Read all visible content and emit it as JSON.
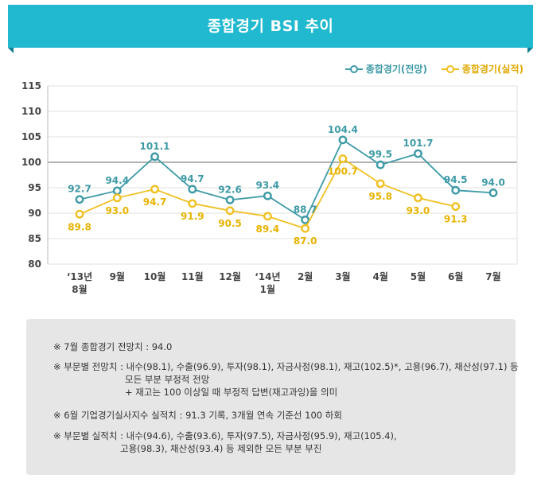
{
  "header": {
    "title": "종합경기 BSI 추이"
  },
  "colors": {
    "banner": "#20b9cf",
    "forecast": "#3d9aa6",
    "actual": "#f0c021"
  },
  "legend": [
    {
      "label": "종합경기(전망)",
      "color": "#3d9aa6"
    },
    {
      "label": "종합경기(실적)",
      "color": "#f0c021"
    }
  ],
  "chart_data": {
    "type": "line",
    "categories": [
      [
        "‘13년",
        "8월"
      ],
      [
        "9월"
      ],
      [
        "10월"
      ],
      [
        "11월"
      ],
      [
        "12월"
      ],
      [
        "‘14년",
        "1월"
      ],
      [
        "2월"
      ],
      [
        "3월"
      ],
      [
        "4월"
      ],
      [
        "5월"
      ],
      [
        "6월"
      ],
      [
        "7월"
      ]
    ],
    "ylim": [
      80,
      115
    ],
    "yticks": [
      80,
      85,
      90,
      95,
      100,
      105,
      110,
      115
    ],
    "reference_line": 100,
    "grid": true,
    "legend_position": "top-right",
    "series": [
      {
        "name": "종합경기(전망)",
        "color": "#3d9aa6",
        "values": [
          92.7,
          94.4,
          101.1,
          94.7,
          92.6,
          93.4,
          88.7,
          104.4,
          99.5,
          101.7,
          94.5,
          94.0
        ],
        "labels": [
          "92.7",
          "94.4",
          "101.1",
          "94.7",
          "92.6",
          "93.4",
          "88.7",
          "104.4",
          "99.5",
          "101.7",
          "94.5",
          "94.0"
        ]
      },
      {
        "name": "종합경기(실적)",
        "color": "#f0c021",
        "values": [
          89.8,
          93.0,
          94.7,
          91.9,
          90.5,
          89.4,
          87.0,
          100.7,
          95.8,
          93.0,
          91.3,
          null
        ],
        "labels": [
          "89.8",
          "93.0",
          "94.7",
          "91.9",
          "90.5",
          "89.4",
          "87.0",
          "100.7",
          "95.8",
          "93.0",
          "91.3",
          ""
        ]
      }
    ]
  },
  "notes": [
    {
      "lines": [
        "※ 7월 종합경기 전망치 : 94.0"
      ]
    },
    {
      "lines": [
        "※ 부문별 전망치 : 내수(98.1), 수출(96.9), 투자(98.1), 자금사정(98.1), 재고(102.5)*, 고용(96.7), 채산성(97.1) 등",
        "모든 부분 부정적 전망",
        "+ 재고는 100 이상일 때 부정적 답변(재고과잉)을 의미"
      ]
    },
    {
      "lines": [
        "※ 6월 기업경기실사지수 실적치 : 91.3 기록, 3개월 연속 기준선 100 하회"
      ]
    },
    {
      "lines": [
        "※ 부문별 실적치 : 내수(94.6), 수출(93.6), 투자(97.5), 자금사정(95.9), 재고(105.4),",
        "고용(98.3), 채산성(93.4) 등 제외한 모든 부분 부진"
      ]
    }
  ]
}
